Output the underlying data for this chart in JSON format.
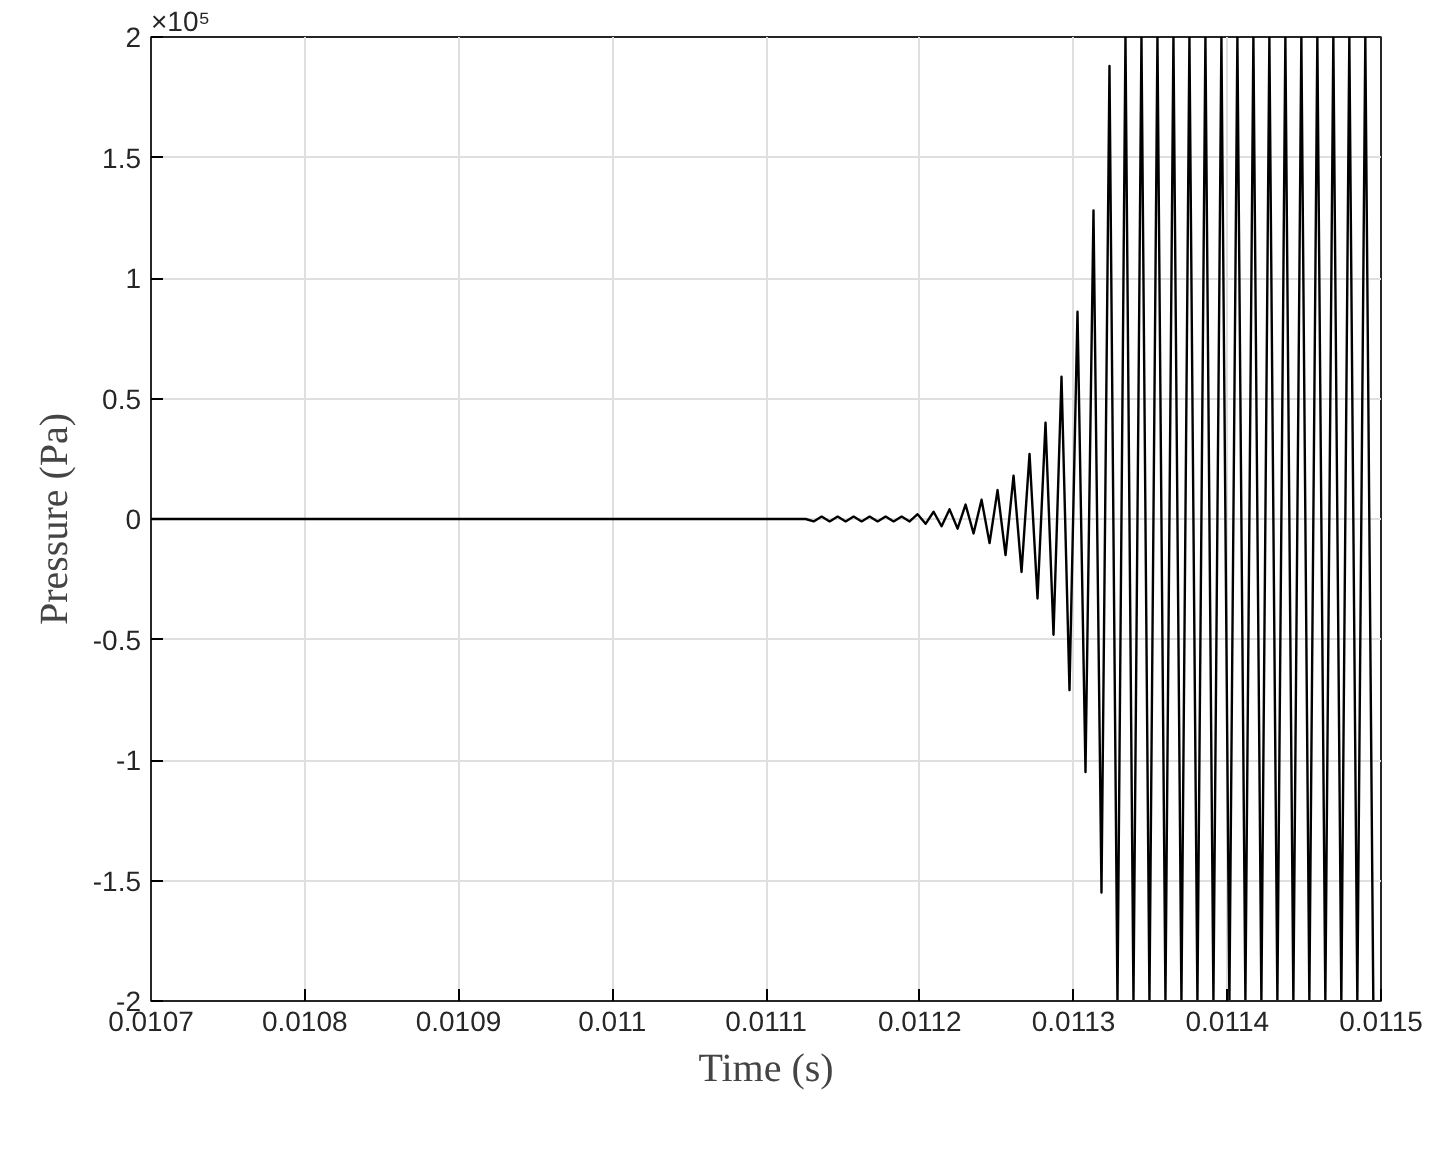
{
  "chart_data": {
    "type": "line",
    "xlabel": "Time (s)",
    "ylabel": "Pressure (Pa)",
    "annotations": [
      "×10⁵"
    ],
    "xlim": [
      0.0107,
      0.0115
    ],
    "ylim": [
      -2,
      2
    ],
    "xticks": [
      0.0107,
      0.0108,
      0.0109,
      0.011,
      0.0111,
      0.0112,
      0.0113,
      0.0114,
      0.0115
    ],
    "yticks": [
      -2,
      -1.5,
      -1,
      -0.5,
      0,
      0.5,
      1,
      1.5,
      2
    ],
    "grid": true,
    "line_style": "solid",
    "series": [
      {
        "color": "#000000",
        "x": [
          0.0107,
          0.0111258,
          0.011131,
          0.0111362,
          0.0111414,
          0.0111466,
          0.0111518,
          0.011157,
          0.0111622,
          0.0111674,
          0.0111726,
          0.0111778,
          0.011183,
          0.0111882,
          0.0111934,
          0.0111986,
          0.0112038,
          0.011209,
          0.0112142,
          0.0112194,
          0.0112246,
          0.0112298,
          0.011235,
          0.0112402,
          0.0112454,
          0.0112506,
          0.0112558,
          0.011261,
          0.0112662,
          0.0112714,
          0.0112766,
          0.0112818,
          0.011287,
          0.0112922,
          0.0112974,
          0.0113026,
          0.0113078,
          0.011313,
          0.0113182,
          0.0113234,
          0.0113286,
          0.0113338,
          0.011339,
          0.0113442,
          0.0113494,
          0.0113546,
          0.0113598,
          0.011365,
          0.0113702,
          0.0113754,
          0.0113806,
          0.0113858,
          0.011391,
          0.0113962,
          0.0114014,
          0.0114066,
          0.0114118,
          0.011417,
          0.0114222,
          0.0114274,
          0.0114326,
          0.0114378,
          0.011443,
          0.0114482,
          0.0114534,
          0.0114586,
          0.0114638,
          0.011469,
          0.0114742,
          0.0114794,
          0.0114846,
          0.0114898,
          0.011495
        ],
        "values": [
          0,
          0,
          -0.01,
          0.01,
          -0.01,
          0.01,
          -0.01,
          0.01,
          -0.01,
          0.01,
          -0.01,
          0.01,
          -0.01,
          0.01,
          -0.01,
          0.02,
          -0.02,
          0.03,
          -0.03,
          0.04,
          -0.04,
          0.06,
          -0.06,
          0.08,
          -0.1,
          0.12,
          -0.15,
          0.18,
          -0.22,
          0.27,
          -0.33,
          0.4,
          -0.48,
          0.59,
          -0.71,
          0.86,
          -1.05,
          1.28,
          -1.55,
          1.88,
          -2,
          2,
          -2,
          2,
          -2,
          2,
          -2,
          2,
          -2,
          2,
          -2,
          2,
          -2,
          2,
          -2,
          2,
          -2,
          2,
          -2,
          2,
          -2,
          2,
          -2,
          2,
          -2,
          2,
          -2,
          2,
          -2,
          2,
          -2,
          2,
          -2
        ]
      }
    ]
  }
}
